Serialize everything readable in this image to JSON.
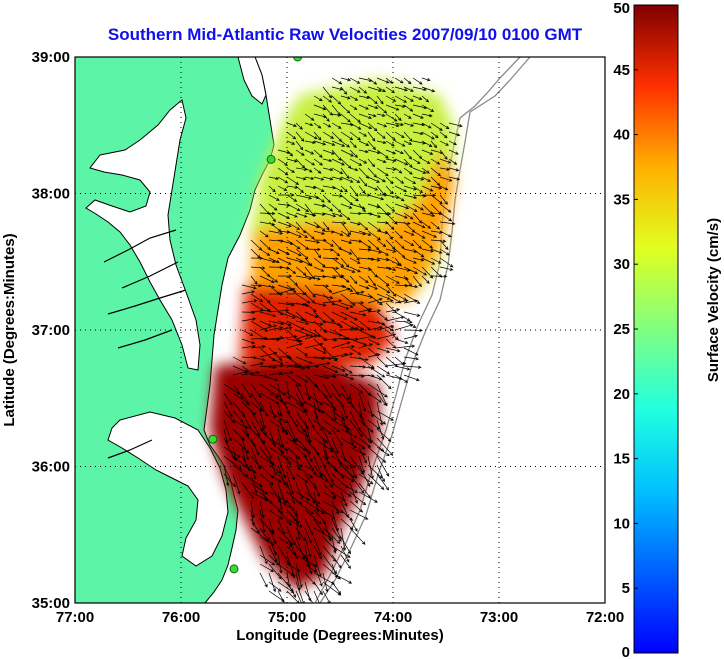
{
  "title": "Southern Mid-Atlantic Raw Velocities 2007/09/10 0100 GMT",
  "x_axis": {
    "label": "Longitude (Degrees:Minutes)",
    "ticks": [
      "77:00",
      "76:00",
      "75:00",
      "74:00",
      "73:00",
      "72:00"
    ],
    "values": [
      -77,
      -76,
      -75,
      -74,
      -73,
      -72
    ],
    "range": [
      -77,
      -72
    ]
  },
  "y_axis": {
    "label": "Latitude (Degrees:Minutes)",
    "ticks": [
      "35:00",
      "36:00",
      "37:00",
      "38:00",
      "39:00"
    ],
    "values": [
      35,
      36,
      37,
      38,
      39
    ],
    "range": [
      35,
      39
    ]
  },
  "colorbar": {
    "label": "Surface Velocity (cm/s)",
    "min": 0,
    "max": 50,
    "ticks": [
      "0",
      "5",
      "10",
      "15",
      "20",
      "25",
      "30",
      "35",
      "40",
      "45",
      "50"
    ],
    "colormap": "jet"
  },
  "colors": {
    "land": "#5cf5a8",
    "ocean": "#ffffff",
    "coastline": "#000000",
    "bathymetry": "#8a8a8a",
    "stations": "#33dd33",
    "vectors": "#000000",
    "title": "#1010ee"
  },
  "grid": "dotted",
  "stations": [
    {
      "lon": -74.9,
      "lat": 39.0
    },
    {
      "lon": -75.15,
      "lat": 38.25
    },
    {
      "lon": -75.7,
      "lat": 36.2
    },
    {
      "lon": -75.5,
      "lat": 35.25
    }
  ]
}
